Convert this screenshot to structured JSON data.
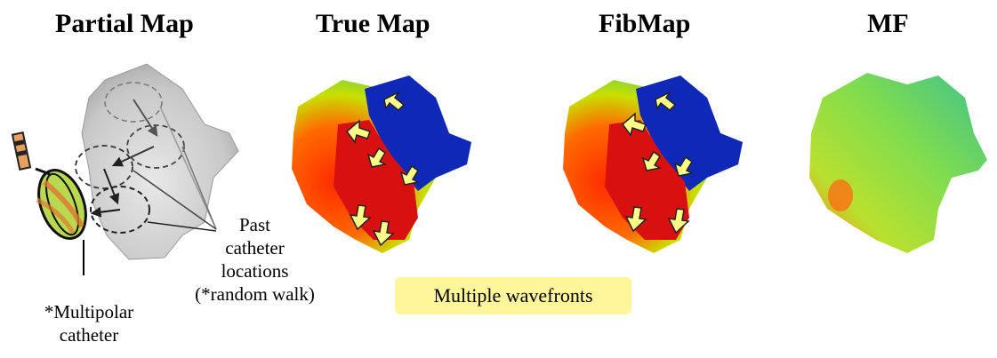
{
  "titles": {
    "partial": "Partial Map",
    "true_map": "True Map",
    "fibmap": "FibMap",
    "mf": "MF"
  },
  "annotations": {
    "past_line1": "Past",
    "past_line2": "catheter",
    "past_line3": "locations",
    "past_line4": "(*random walk)",
    "catheter_line1": "*Multipolar",
    "catheter_line2": "catheter",
    "wavefronts": "Multiple wavefronts"
  },
  "colors": {
    "highlight": "#fff59a",
    "arrow_fill": "#ffff88"
  }
}
